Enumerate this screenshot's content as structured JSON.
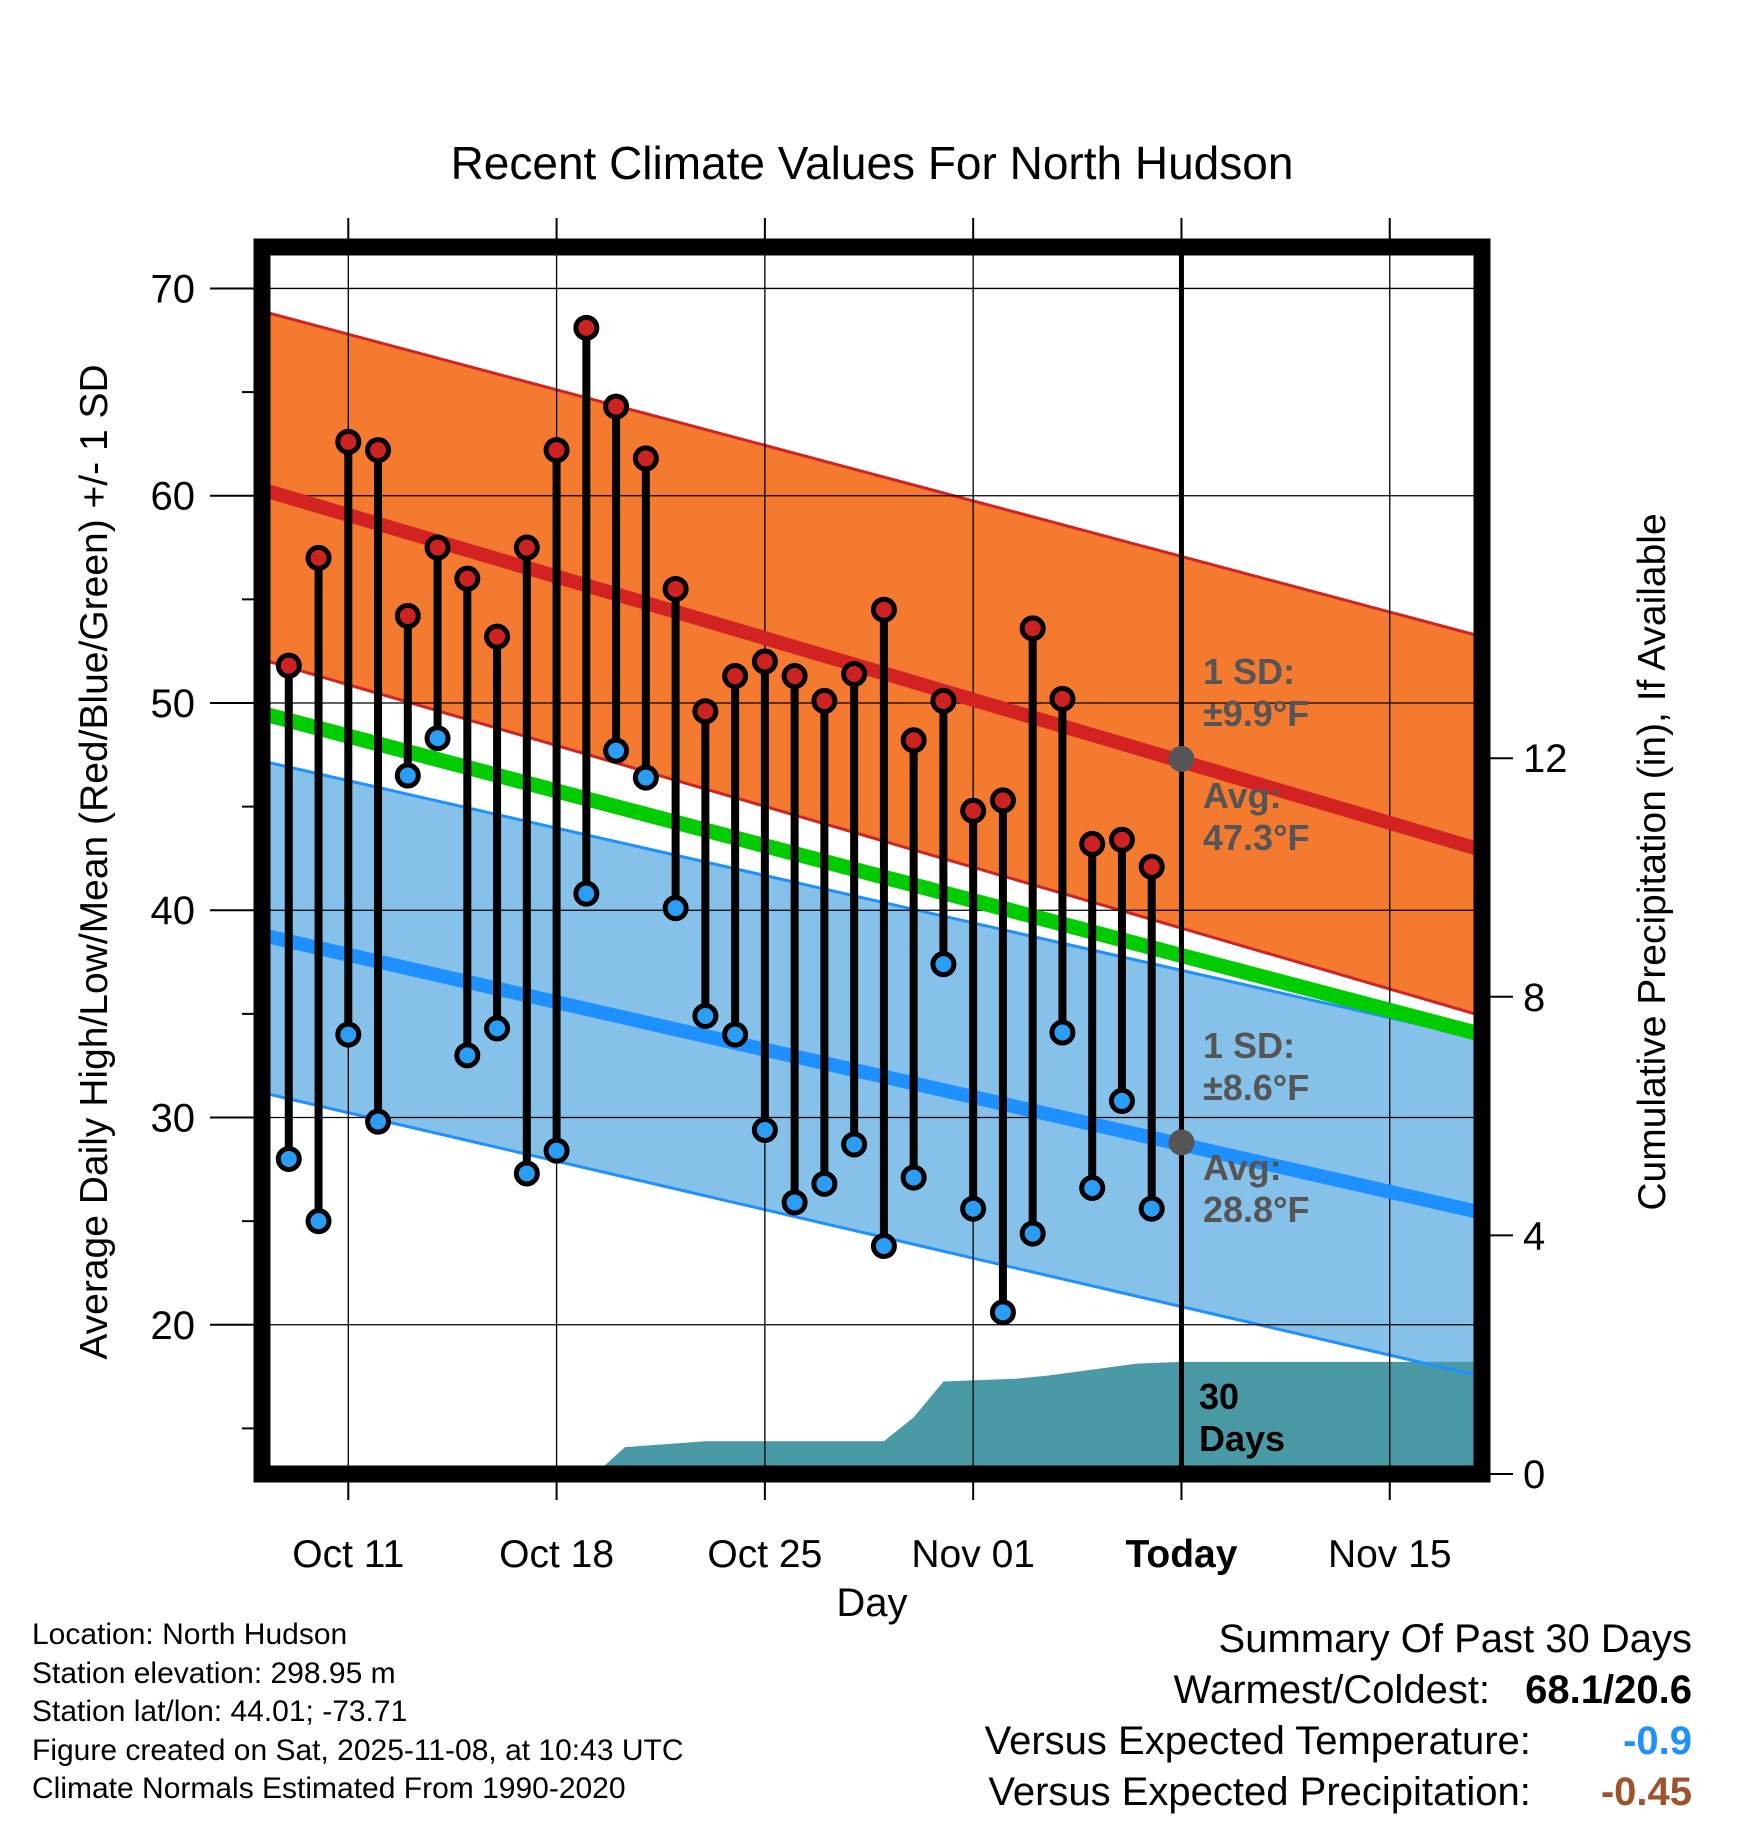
{
  "chart_data": {
    "type": "line",
    "title": "Recent Climate Values For North Hudson",
    "xlabel": "Day",
    "ylabel_left": "Average Daily High/Low/Mean (Red/Blue/Green) +/- 1 SD",
    "ylabel_right": "Cumulative Precipitation (in), If Available",
    "y_range": [
      12.8,
      72
    ],
    "y_ticks": [
      20,
      30,
      40,
      50,
      60,
      70
    ],
    "y2_range": [
      0,
      20.57
    ],
    "y2_ticks": [
      0,
      4,
      8,
      12
    ],
    "x_range": [
      -2.9,
      38.1
    ],
    "x_ticks": [
      {
        "day": 0,
        "label": "Oct 11"
      },
      {
        "day": 7,
        "label": "Oct 18"
      },
      {
        "day": 14,
        "label": "Oct 25"
      },
      {
        "day": 21,
        "label": "Nov 01"
      },
      {
        "day": 28,
        "label": "Today"
      },
      {
        "day": 35,
        "label": "Nov 15"
      }
    ],
    "today_day": 28,
    "normals": {
      "high_avg": [
        60.3,
        42.9
      ],
      "high_upper": [
        68.9,
        53.2
      ],
      "high_lower": [
        52.1,
        34.9
      ],
      "low_avg": [
        38.8,
        25.4
      ],
      "low_upper": [
        47.2,
        33.8
      ],
      "low_lower": [
        31.2,
        17.5
      ],
      "mean_avg": [
        49.5,
        34.0
      ]
    },
    "observations": {
      "days": [
        -2,
        -1,
        0,
        1,
        2,
        3,
        4,
        5,
        6,
        7,
        8,
        9,
        10,
        11,
        12,
        13,
        14,
        15,
        16,
        17,
        18,
        19,
        20,
        21,
        22,
        23,
        24,
        25,
        26,
        27
      ],
      "highs": [
        51.8,
        57.0,
        62.6,
        62.2,
        54.2,
        57.5,
        56.0,
        53.2,
        57.5,
        62.2,
        68.1,
        64.3,
        61.8,
        55.5,
        49.6,
        51.3,
        52.0,
        51.3,
        50.1,
        51.4,
        54.5,
        48.2,
        50.1,
        44.8,
        45.3,
        53.6,
        50.2,
        43.2,
        43.4,
        42.1
      ],
      "lows": [
        28.0,
        25.0,
        34.0,
        29.8,
        46.5,
        48.3,
        33.0,
        34.3,
        27.3,
        28.4,
        40.8,
        47.7,
        46.4,
        40.1,
        34.9,
        34.0,
        29.4,
        25.9,
        26.8,
        28.7,
        23.8,
        27.1,
        37.4,
        25.6,
        20.6,
        24.4,
        34.1,
        26.6,
        30.8,
        25.6
      ]
    },
    "precip_cumulative": {
      "days": [
        8.3,
        9.3,
        12.0,
        14.0,
        18.0,
        19.0,
        20.0,
        22.5,
        23.5,
        25.0,
        26.5,
        28.0,
        38.1
      ],
      "values": [
        0,
        0.45,
        0.55,
        0.55,
        0.55,
        0.95,
        1.55,
        1.6,
        1.65,
        1.75,
        1.85,
        1.88,
        1.88
      ]
    },
    "annotations": {
      "high_sd": [
        "1 SD:",
        "±9.9°F"
      ],
      "high_avg": [
        "Avg:",
        "47.3°F"
      ],
      "low_sd": [
        "1 SD:",
        "±8.6°F"
      ],
      "low_avg": [
        "Avg:",
        "28.8°F"
      ],
      "window": [
        "30",
        "Days"
      ],
      "today_high_avg": 47.3,
      "today_low_avg": 28.8
    },
    "colors": {
      "high_band": "#f47a30",
      "high_line": "#d22222",
      "low_band": "#85c1e9",
      "low_line": "#1e90ff",
      "mean_line": "#00cc00",
      "precip": "#4a9aa5",
      "annotation": "#555555",
      "high_dot": "#cc2222",
      "low_dot": "#2a9df4"
    }
  },
  "info": {
    "location": "Location: North Hudson",
    "elevation": "Station elevation: 298.95 m",
    "latlon": "Station lat/lon: 44.01; -73.71",
    "created": "Figure created on Sat, 2025-11-08, at 10:43 UTC",
    "normals": "Climate Normals Estimated From 1990-2020"
  },
  "summary": {
    "title": "Summary Of Past 30 Days",
    "warm_cold_label": "Warmest/Coldest:",
    "warm_cold_value": "68.1/20.6",
    "temp_label": "Versus Expected Temperature:",
    "temp_value": "-0.9",
    "temp_color": "#1e90ff",
    "precip_label": "Versus Expected Precipitation:",
    "precip_value": "-0.45",
    "precip_color": "#a0522d"
  }
}
